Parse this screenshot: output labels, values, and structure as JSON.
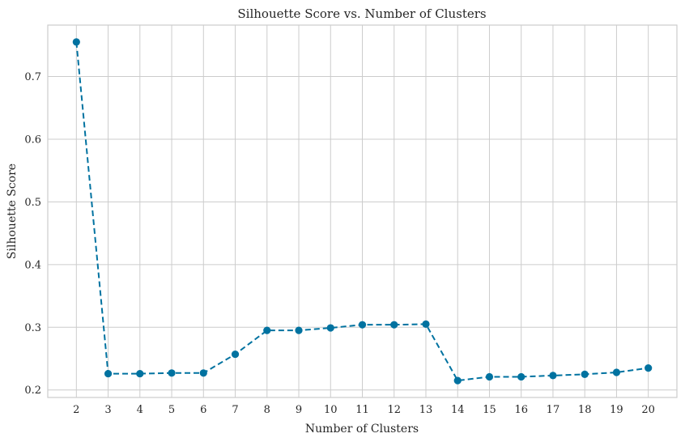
{
  "chart_data": {
    "type": "line",
    "title": "Silhouette Score vs. Number of Clusters",
    "xlabel": "Number of Clusters",
    "ylabel": "Silhouette Score",
    "x": [
      2,
      3,
      4,
      5,
      6,
      7,
      8,
      9,
      10,
      11,
      12,
      13,
      14,
      15,
      16,
      17,
      18,
      19,
      20
    ],
    "series": [
      {
        "values": [
          0.755,
          0.226,
          0.226,
          0.227,
          0.227,
          0.257,
          0.295,
          0.295,
          0.299,
          0.304,
          0.304,
          0.305,
          0.215,
          0.221,
          0.221,
          0.223,
          0.225,
          0.228,
          0.235
        ]
      }
    ],
    "xlim": [
      1.1,
      20.9
    ],
    "ylim": [
      0.188,
      0.782
    ],
    "yticks": [
      0.2,
      0.3,
      0.4,
      0.5,
      0.6,
      0.7
    ],
    "ytick_labels": [
      "0.2",
      "0.3",
      "0.4",
      "0.5",
      "0.6",
      "0.7"
    ],
    "xtick_labels": [
      "2",
      "3",
      "4",
      "5",
      "6",
      "7",
      "8",
      "9",
      "10",
      "11",
      "12",
      "13",
      "14",
      "15",
      "16",
      "17",
      "18",
      "19",
      "20"
    ],
    "line_style": "dashed",
    "marker": "circle",
    "grid": true,
    "legend": false,
    "color": "#0072a0"
  }
}
